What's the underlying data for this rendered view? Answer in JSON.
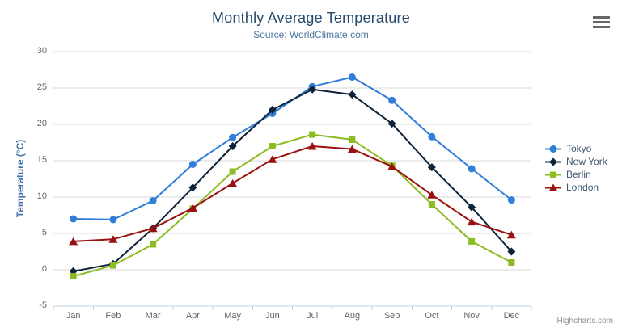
{
  "credits": "Highcharts.com",
  "menu_icon": "hamburger-menu-icon",
  "colors": {
    "title": "#274b6d",
    "subtitle": "#4d759e",
    "y_axis_title": "#4572a7",
    "axis_labels": "#666666",
    "grid_line": "#d8d8d8",
    "axis_line": "#c0d0e0",
    "legend_text": "#3e576f"
  },
  "chart_data": {
    "type": "line",
    "title": "Monthly Average Temperature",
    "subtitle": "Source: WorldClimate.com",
    "xlabel": "",
    "ylabel": "Temperature (°C)",
    "ylim": [
      -5,
      30
    ],
    "yticks": [
      30,
      25,
      20,
      15,
      10,
      5,
      0,
      -5
    ],
    "grid": true,
    "legend_position": "right",
    "categories": [
      "Jan",
      "Feb",
      "Mar",
      "Apr",
      "May",
      "Jun",
      "Jul",
      "Aug",
      "Sep",
      "Oct",
      "Nov",
      "Dec"
    ],
    "series": [
      {
        "name": "Tokyo",
        "color": "#2f7ed8",
        "marker": "circle",
        "values": [
          7.0,
          6.9,
          9.5,
          14.5,
          18.2,
          21.5,
          25.2,
          26.5,
          23.3,
          18.3,
          13.9,
          9.6
        ]
      },
      {
        "name": "New York",
        "color": "#0d233a",
        "marker": "diamond",
        "values": [
          -0.2,
          0.8,
          5.7,
          11.3,
          17.0,
          22.0,
          24.8,
          24.1,
          20.1,
          14.1,
          8.6,
          2.5
        ]
      },
      {
        "name": "Berlin",
        "color": "#8bbc21",
        "marker": "square",
        "values": [
          -0.9,
          0.6,
          3.5,
          8.4,
          13.5,
          17.0,
          18.6,
          17.9,
          14.3,
          9.0,
          3.9,
          1.0
        ]
      },
      {
        "name": "London",
        "color": "#9a1010",
        "marker": "triangle",
        "values": [
          3.9,
          4.2,
          5.7,
          8.5,
          11.9,
          15.2,
          17.0,
          16.6,
          14.2,
          10.3,
          6.6,
          4.8
        ]
      }
    ]
  }
}
